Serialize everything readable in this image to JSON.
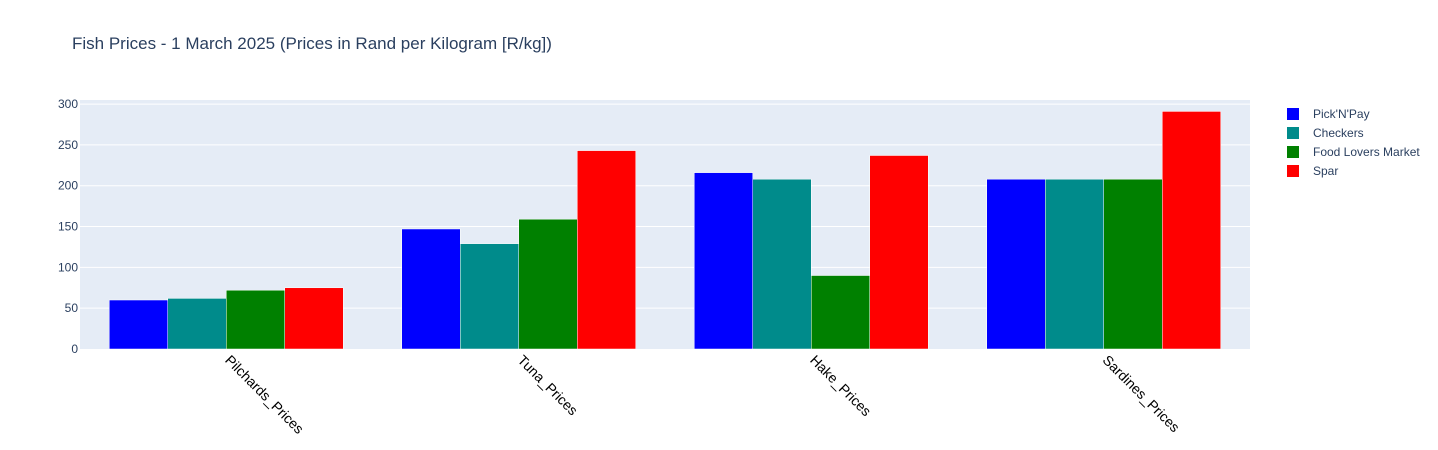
{
  "chart_data": {
    "type": "bar",
    "title": "Fish Prices - 1 March 2025 (Prices in Rand per Kilogram [R/kg])",
    "xlabel": "",
    "ylabel": "",
    "categories": [
      "Pilchards_Prices",
      "Tuna_Prices",
      "Hake_Prices",
      "Sardines_Prices"
    ],
    "series": [
      {
        "name": "Pick'N'Pay",
        "color": "#0000ff",
        "values": [
          60,
          147,
          216,
          208
        ]
      },
      {
        "name": "Checkers",
        "color": "#008b8b",
        "values": [
          62,
          129,
          208,
          208
        ]
      },
      {
        "name": "Food Lovers Market",
        "color": "#008000",
        "values": [
          72,
          159,
          90,
          208
        ]
      },
      {
        "name": "Spar",
        "color": "#ff0000",
        "values": [
          75,
          243,
          237,
          291
        ]
      }
    ],
    "ylim": [
      0,
      305
    ],
    "yticks": [
      0,
      50,
      100,
      150,
      200,
      250,
      300
    ],
    "grid": true,
    "legend_position": "right",
    "plot_bgcolor": "#e5ecf6"
  }
}
